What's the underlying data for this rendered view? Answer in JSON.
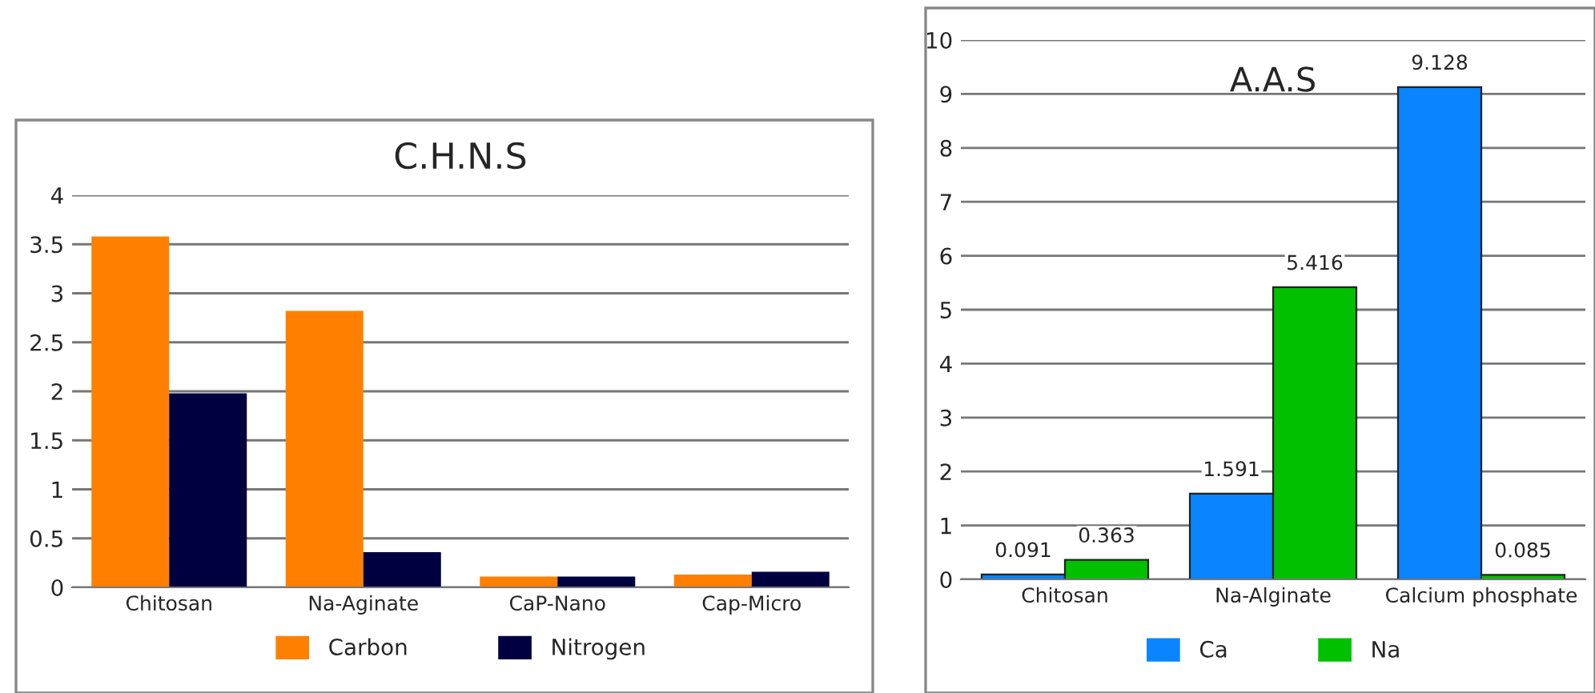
{
  "chart_data": [
    {
      "type": "bar",
      "title": "C.H.N.S",
      "categories": [
        "Chitosan",
        "Na-Aginate",
        "CaP-Nano",
        "Cap-Micro"
      ],
      "series": [
        {
          "name": "Carbon",
          "color": "#ff8000",
          "values": [
            3.58,
            2.82,
            0.11,
            0.13
          ]
        },
        {
          "name": "Nitrogen",
          "color": "#000040",
          "values": [
            1.98,
            0.36,
            0.11,
            0.16
          ]
        }
      ],
      "ylim": [
        0,
        4
      ],
      "yticks": [
        0,
        0.5,
        1,
        1.5,
        2,
        2.5,
        3,
        3.5,
        4
      ],
      "grid": "y",
      "legend": "bottom"
    },
    {
      "type": "bar",
      "title": "A.A.S",
      "categories": [
        "Chitosan",
        "Na-Alginate",
        "Calcium phosphate"
      ],
      "series": [
        {
          "name": "Ca",
          "color": "#0a84ff",
          "values": [
            0.091,
            1.591,
            9.128
          ]
        },
        {
          "name": "Na",
          "color": "#00c000",
          "values": [
            0.363,
            5.416,
            0.085
          ]
        }
      ],
      "ylim": [
        0,
        10
      ],
      "yticks": [
        0,
        1,
        2,
        3,
        4,
        5,
        6,
        7,
        8,
        9,
        10
      ],
      "grid": "y",
      "legend": "bottom",
      "data_labels": true
    }
  ]
}
